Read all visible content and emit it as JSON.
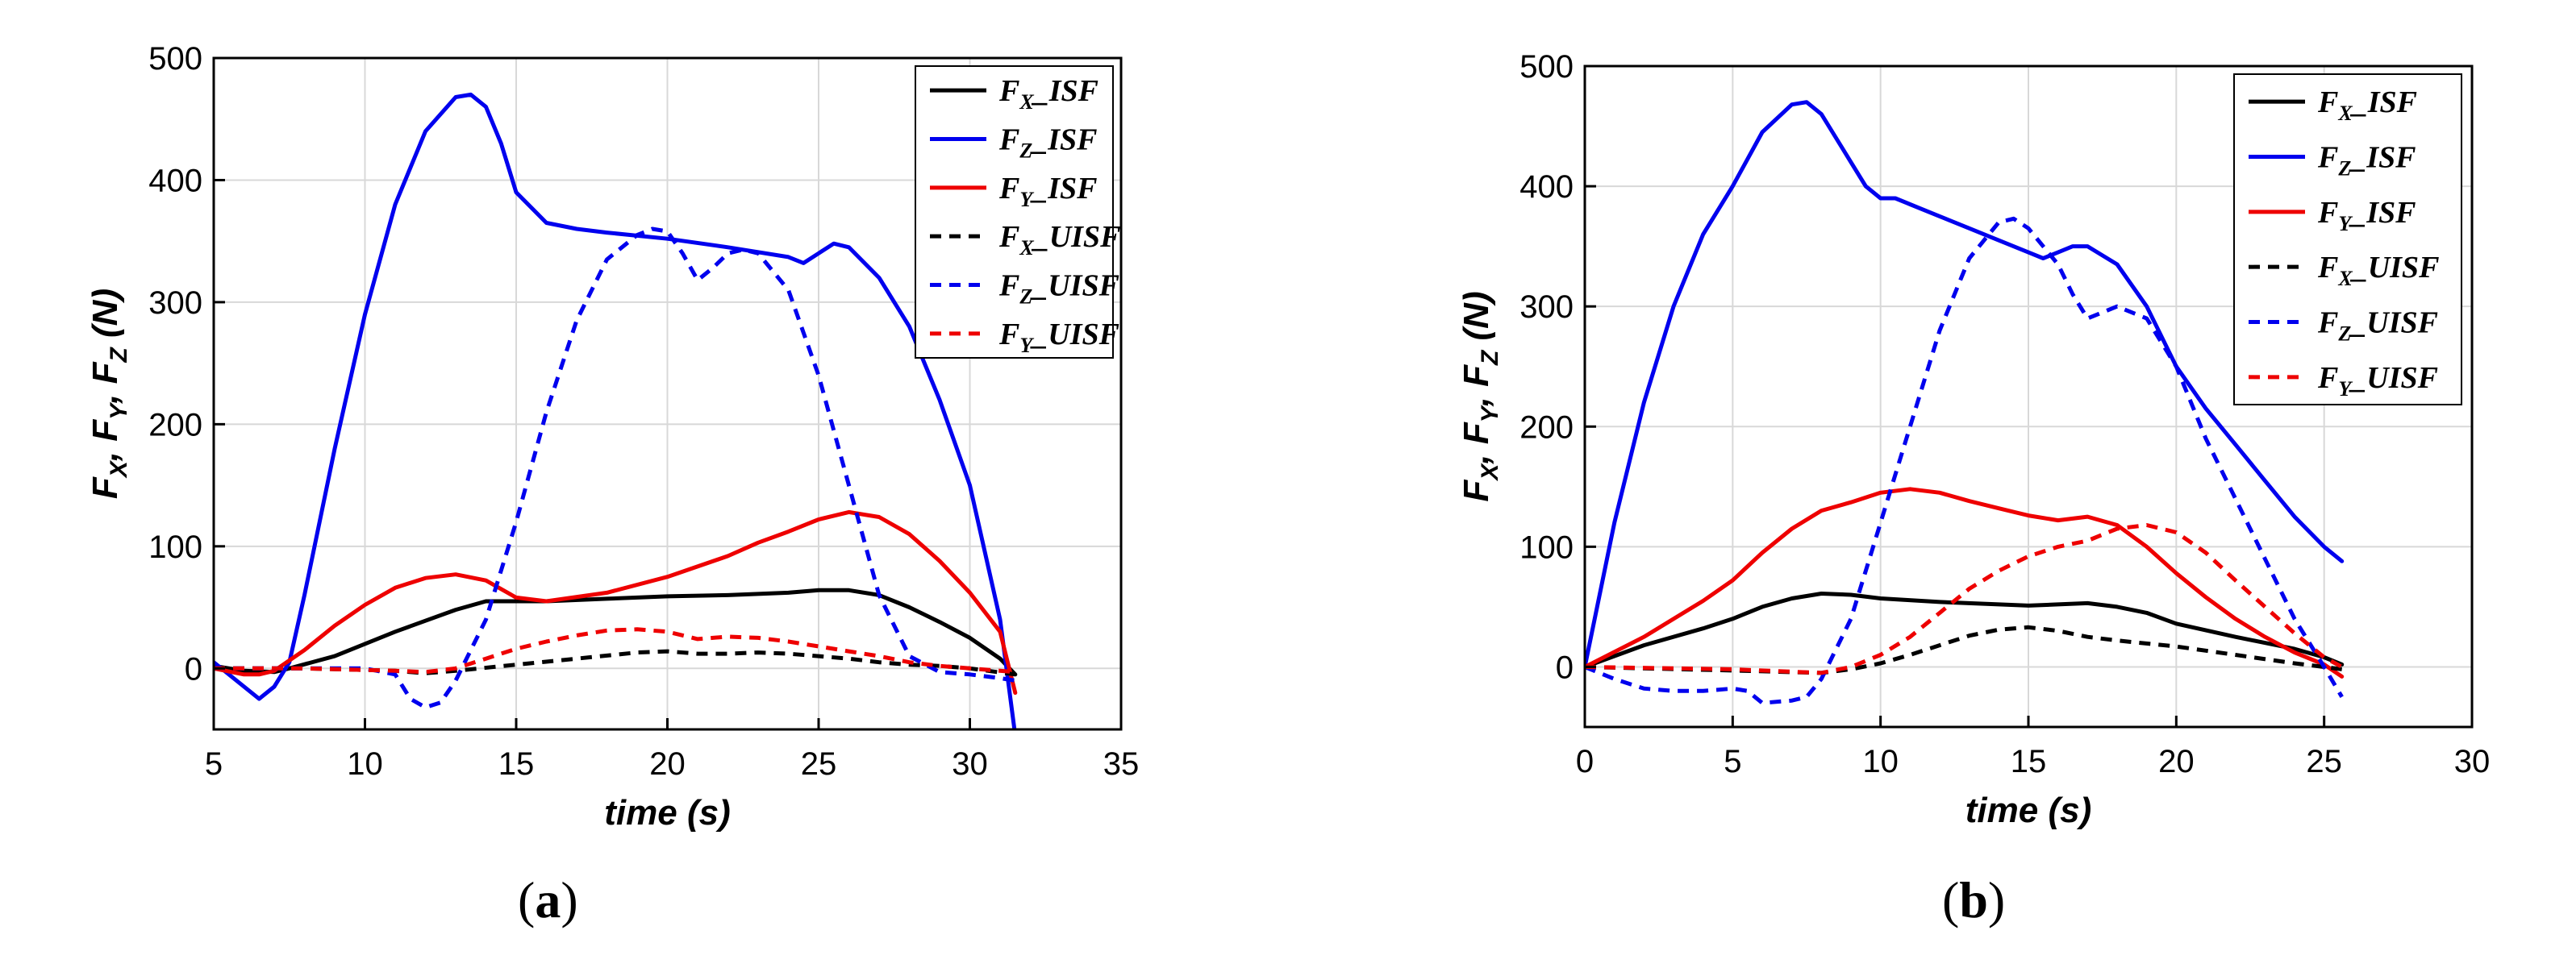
{
  "chart_data": [
    {
      "type": "line",
      "panel_label": "a",
      "xlabel": "time (s)",
      "ylabel": "Fx, Fy, Fz (N)",
      "xlim": [
        5,
        35
      ],
      "ylim": [
        -50,
        500
      ],
      "xticks": [
        5,
        10,
        15,
        20,
        25,
        30,
        35
      ],
      "yticks": [
        0,
        100,
        200,
        300,
        400,
        500
      ],
      "grid": true,
      "legend_position": "top-right",
      "series": [
        {
          "name": "Fx_ISF",
          "color": "#000000",
          "dash": "solid",
          "x": [
            5,
            6,
            7,
            7.5,
            9,
            11,
            13,
            14,
            16,
            18,
            20,
            22,
            24,
            25,
            26,
            27,
            28,
            29,
            30,
            31,
            31.5
          ],
          "y": [
            2,
            -2,
            -3,
            0,
            10,
            30,
            48,
            55,
            55,
            57,
            59,
            60,
            62,
            64,
            64,
            60,
            50,
            38,
            25,
            8,
            -5
          ]
        },
        {
          "name": "Fz_ISF",
          "color": "#0000ee",
          "dash": "solid",
          "x": [
            5,
            5.5,
            6.5,
            7,
            7.5,
            8,
            9,
            10,
            11,
            12,
            13,
            13.5,
            14,
            14.5,
            15,
            16,
            17,
            18,
            20,
            22,
            24,
            24.5,
            25,
            25.5,
            26,
            27,
            28,
            29,
            30,
            31,
            31.5
          ],
          "y": [
            5,
            -5,
            -25,
            -15,
            5,
            60,
            180,
            290,
            380,
            440,
            468,
            470,
            460,
            430,
            390,
            365,
            360,
            357,
            352,
            345,
            337,
            332,
            340,
            348,
            345,
            320,
            280,
            220,
            150,
            40,
            -55
          ]
        },
        {
          "name": "Fy_ISF",
          "color": "#ee0000",
          "dash": "solid",
          "x": [
            5,
            6,
            6.5,
            7,
            8,
            9,
            10,
            11,
            12,
            13,
            14,
            15,
            16,
            18,
            20,
            22,
            23,
            24,
            25,
            26,
            27,
            28,
            29,
            30,
            31,
            31.5
          ],
          "y": [
            0,
            -5,
            -5,
            -2,
            15,
            35,
            52,
            66,
            74,
            77,
            72,
            58,
            55,
            62,
            75,
            92,
            103,
            112,
            122,
            128,
            124,
            110,
            88,
            62,
            30,
            -20
          ]
        },
        {
          "name": "Fx_UISF",
          "color": "#000000",
          "dash": "dashed",
          "x": [
            5,
            8,
            11,
            12,
            13,
            15,
            17,
            19,
            20,
            21,
            22,
            23,
            24,
            25,
            26,
            27,
            28,
            29,
            30,
            31.5
          ],
          "y": [
            0,
            0,
            -2,
            -4,
            -2,
            3,
            8,
            13,
            14,
            12,
            12,
            13,
            12,
            10,
            8,
            5,
            3,
            2,
            0,
            -5
          ]
        },
        {
          "name": "Fz_UISF",
          "color": "#0000ee",
          "dash": "dashed",
          "x": [
            5,
            10,
            11,
            11.5,
            12,
            12.5,
            13,
            14,
            15,
            16,
            17,
            18,
            19,
            19.5,
            20,
            20.5,
            21,
            21.5,
            22,
            22.5,
            23,
            24,
            25,
            26,
            27,
            28,
            29,
            30,
            31,
            31.5
          ],
          "y": [
            0,
            0,
            -5,
            -25,
            -32,
            -28,
            -10,
            40,
            120,
            210,
            285,
            335,
            355,
            360,
            358,
            340,
            318,
            328,
            340,
            343,
            340,
            310,
            240,
            150,
            60,
            10,
            -3,
            -5,
            -8,
            -10
          ]
        },
        {
          "name": "Fy_UISF",
          "color": "#ee0000",
          "dash": "dashed",
          "x": [
            5,
            8,
            11,
            12,
            13,
            14,
            15,
            16,
            17,
            18,
            19,
            20,
            21,
            22,
            23,
            24,
            25,
            26,
            27,
            28,
            29,
            30,
            31.5
          ],
          "y": [
            0,
            0,
            -2,
            -3,
            0,
            8,
            16,
            22,
            27,
            31,
            32,
            30,
            24,
            26,
            25,
            22,
            18,
            14,
            10,
            5,
            2,
            0,
            -3
          ]
        }
      ]
    },
    {
      "type": "line",
      "panel_label": "b",
      "xlabel": "time (s)",
      "ylabel": "Fx, Fy, Fz (N)",
      "xlim": [
        0,
        30
      ],
      "ylim": [
        -50,
        500
      ],
      "xticks": [
        0,
        5,
        10,
        15,
        20,
        25,
        30
      ],
      "yticks": [
        0,
        100,
        200,
        300,
        400,
        500
      ],
      "grid": true,
      "legend_position": "top-right",
      "series": [
        {
          "name": "Fx_ISF",
          "color": "#000000",
          "dash": "solid",
          "x": [
            0,
            2,
            4,
            5,
            6,
            7,
            8,
            9,
            10,
            12,
            14,
            15,
            16,
            17,
            18,
            19,
            20,
            22,
            24,
            25,
            25.6
          ],
          "y": [
            0,
            18,
            32,
            40,
            50,
            57,
            61,
            60,
            57,
            54,
            52,
            51,
            52,
            53,
            50,
            45,
            36,
            25,
            15,
            8,
            2
          ]
        },
        {
          "name": "Fz_ISF",
          "color": "#0000ee",
          "dash": "solid",
          "x": [
            0,
            1,
            2,
            3,
            4,
            5,
            6,
            7,
            7.5,
            8,
            8.5,
            9,
            9.5,
            10,
            10.5,
            11,
            12,
            13,
            14,
            15,
            15.5,
            16,
            16.5,
            17,
            18,
            19,
            20,
            21,
            22,
            23,
            24,
            25,
            25.6
          ],
          "y": [
            0,
            120,
            220,
            300,
            360,
            400,
            445,
            468,
            470,
            460,
            440,
            420,
            400,
            390,
            390,
            385,
            375,
            365,
            355,
            345,
            340,
            345,
            350,
            350,
            335,
            300,
            250,
            215,
            185,
            155,
            125,
            100,
            88
          ]
        },
        {
          "name": "Fy_ISF",
          "color": "#ee0000",
          "dash": "solid",
          "x": [
            0,
            2,
            4,
            5,
            6,
            7,
            8,
            9,
            10,
            11,
            12,
            13,
            14,
            15,
            16,
            17,
            18,
            19,
            20,
            21,
            22,
            23,
            24,
            25,
            25.6
          ],
          "y": [
            0,
            25,
            55,
            72,
            95,
            115,
            130,
            137,
            145,
            148,
            145,
            138,
            132,
            126,
            122,
            125,
            118,
            100,
            78,
            58,
            40,
            25,
            12,
            2,
            -8
          ]
        },
        {
          "name": "Fx_UISF",
          "color": "#000000",
          "dash": "dashed",
          "x": [
            0,
            5,
            8,
            9,
            10,
            11,
            12,
            13,
            14,
            15,
            16,
            17,
            18,
            20,
            22,
            24,
            25,
            25.6
          ],
          "y": [
            0,
            -3,
            -5,
            -2,
            3,
            10,
            18,
            26,
            31,
            33,
            30,
            25,
            22,
            17,
            10,
            3,
            0,
            -2
          ]
        },
        {
          "name": "Fz_UISF",
          "color": "#0000ee",
          "dash": "dashed",
          "x": [
            0,
            1,
            2,
            3,
            4,
            5,
            5.5,
            6,
            7,
            7.5,
            8,
            9,
            10,
            11,
            12,
            13,
            14,
            14.5,
            15,
            15.5,
            16,
            16.5,
            17,
            17.5,
            18,
            19,
            20,
            21,
            22,
            23,
            24,
            25,
            25.6
          ],
          "y": [
            0,
            -10,
            -18,
            -20,
            -20,
            -18,
            -20,
            -30,
            -28,
            -25,
            -10,
            40,
            120,
            200,
            280,
            340,
            370,
            373,
            365,
            350,
            335,
            310,
            290,
            295,
            300,
            290,
            250,
            190,
            140,
            90,
            40,
            0,
            -25
          ]
        },
        {
          "name": "Fy_UISF",
          "color": "#ee0000",
          "dash": "dashed",
          "x": [
            0,
            5,
            8,
            9,
            10,
            11,
            12,
            13,
            14,
            15,
            16,
            17,
            18,
            19,
            20,
            21,
            22,
            23,
            24,
            25,
            25.6
          ],
          "y": [
            0,
            -2,
            -5,
            0,
            10,
            25,
            45,
            65,
            80,
            92,
            100,
            105,
            115,
            118,
            112,
            95,
            72,
            50,
            28,
            8,
            0
          ]
        }
      ]
    }
  ],
  "captions": {
    "a": "(a)",
    "b": "(b)"
  },
  "axis_label_parts": {
    "xlabel": "time (s)",
    "ylabel_main": "F",
    "ylabel_subs": [
      "X",
      "Y",
      "Z"
    ],
    "ylabel_unit": "(N)"
  },
  "legend_parts": {
    "prefix": "F",
    "subs": [
      "X",
      "Z",
      "Y",
      "X",
      "Z",
      "Y"
    ],
    "suffixes": [
      "ISF",
      "ISF",
      "ISF",
      "UISF",
      "UISF",
      "UISF"
    ]
  }
}
